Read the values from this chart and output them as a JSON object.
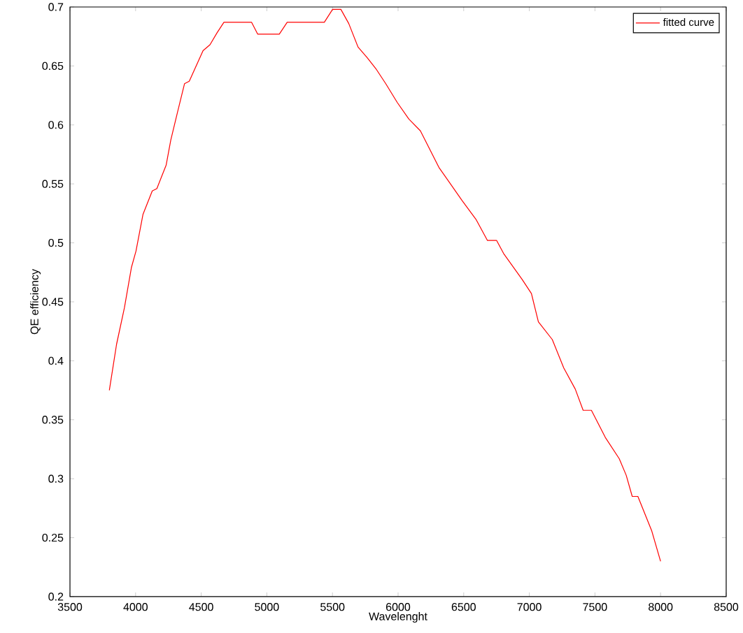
{
  "chart_data": {
    "type": "line",
    "xlabel": "Wavelenght",
    "ylabel": "QE efficiency",
    "xlim": [
      3500,
      8500
    ],
    "xticks": [
      3500,
      4000,
      4500,
      5000,
      5500,
      6000,
      6500,
      7000,
      7500,
      8000,
      8500
    ],
    "ylim": [
      0.2,
      0.7
    ],
    "yticks": [
      0.2,
      0.25,
      0.3,
      0.35,
      0.4,
      0.45,
      0.5,
      0.55,
      0.6,
      0.65,
      0.7
    ],
    "grid": false,
    "legend": "top right",
    "marker": "none",
    "line_style": "solid",
    "series": [
      {
        "name": "fitted curve",
        "color": "#ff0000",
        "x": [
          3800,
          3855,
          3915,
          3968,
          4003,
          4056,
          4127,
          4162,
          4233,
          4268,
          4320,
          4373,
          4409,
          4514,
          4567,
          4620,
          4673,
          4831,
          4884,
          4930,
          5095,
          5155,
          5360,
          5438,
          5501,
          5564,
          5624,
          5695,
          5765,
          5835,
          5906,
          5994,
          6082,
          6170,
          6311,
          6487,
          6593,
          6681,
          6751,
          6804,
          6945,
          7016,
          7069,
          7175,
          7262,
          7350,
          7410,
          7473,
          7579,
          7685,
          7738,
          7784,
          7827,
          7932,
          8000
        ],
        "values": [
          0.375,
          0.414,
          0.445,
          0.479,
          0.493,
          0.524,
          0.544,
          0.546,
          0.566,
          0.587,
          0.611,
          0.635,
          0.637,
          0.663,
          0.668,
          0.678,
          0.687,
          0.687,
          0.687,
          0.677,
          0.677,
          0.687,
          0.687,
          0.687,
          0.698,
          0.698,
          0.686,
          0.666,
          0.657,
          0.647,
          0.635,
          0.619,
          0.605,
          0.595,
          0.564,
          0.536,
          0.52,
          0.502,
          0.502,
          0.491,
          0.469,
          0.457,
          0.433,
          0.418,
          0.394,
          0.376,
          0.358,
          0.358,
          0.335,
          0.317,
          0.303,
          0.285,
          0.285,
          0.256,
          0.23
        ]
      }
    ]
  }
}
